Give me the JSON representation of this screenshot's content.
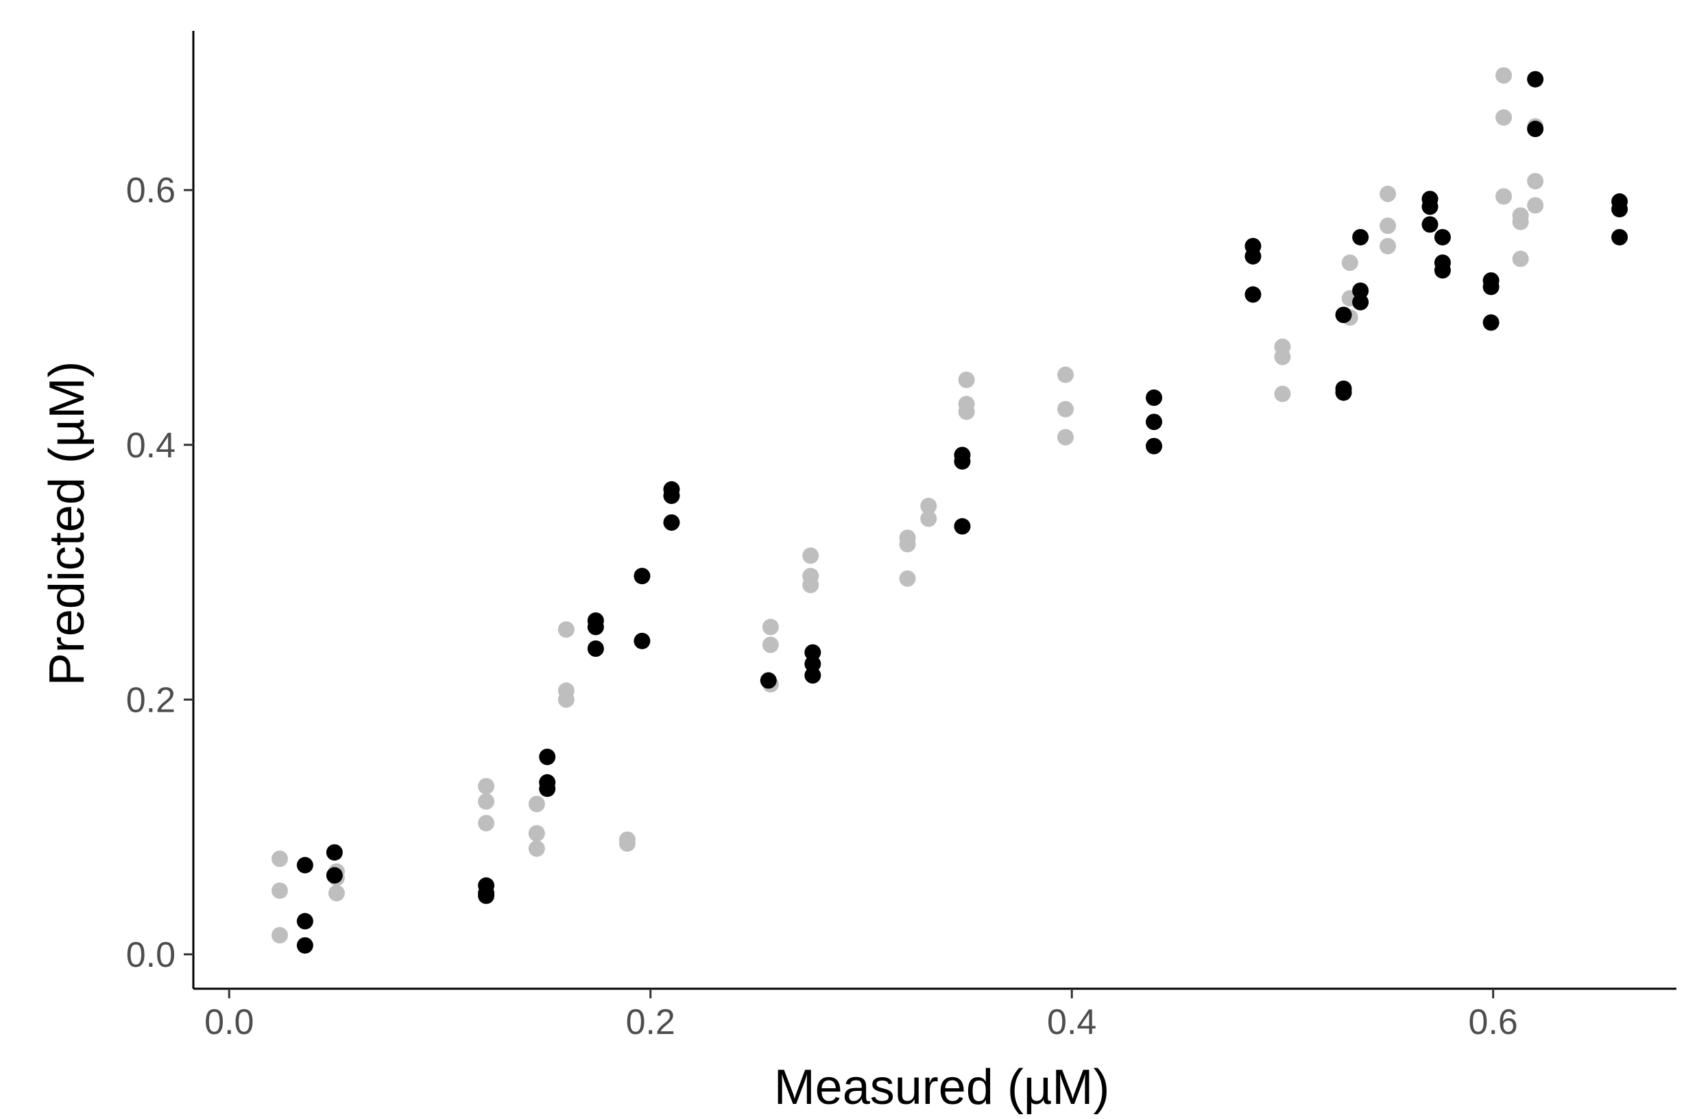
{
  "chart_data": {
    "type": "scatter",
    "title": "",
    "xlabel": "Measured (µM)",
    "ylabel": "Predicted (µM)",
    "xlim": [
      -0.017,
      0.687
    ],
    "ylim": [
      -0.027,
      0.725
    ],
    "xticks": [
      0.0,
      0.2,
      0.4,
      0.6
    ],
    "yticks": [
      0.0,
      0.2,
      0.4,
      0.6
    ],
    "xtick_labels": [
      "0.0",
      "0.2",
      "0.4",
      "0.6"
    ],
    "ytick_labels": [
      "0.0",
      "0.2",
      "0.4",
      "0.6"
    ],
    "grid": false,
    "legend": "none",
    "series": [
      {
        "color": "#bebebe",
        "points": [
          [
            0.024,
            0.075
          ],
          [
            0.024,
            0.05
          ],
          [
            0.024,
            0.015
          ],
          [
            0.051,
            0.065
          ],
          [
            0.051,
            0.06
          ],
          [
            0.051,
            0.048
          ],
          [
            0.122,
            0.132
          ],
          [
            0.122,
            0.12
          ],
          [
            0.122,
            0.103
          ],
          [
            0.146,
            0.118
          ],
          [
            0.146,
            0.095
          ],
          [
            0.146,
            0.083
          ],
          [
            0.16,
            0.255
          ],
          [
            0.16,
            0.207
          ],
          [
            0.16,
            0.2
          ],
          [
            0.189,
            0.09
          ],
          [
            0.189,
            0.087
          ],
          [
            0.257,
            0.257
          ],
          [
            0.257,
            0.243
          ],
          [
            0.257,
            0.212
          ],
          [
            0.276,
            0.313
          ],
          [
            0.276,
            0.297
          ],
          [
            0.276,
            0.29
          ],
          [
            0.322,
            0.327
          ],
          [
            0.322,
            0.322
          ],
          [
            0.322,
            0.295
          ],
          [
            0.332,
            0.352
          ],
          [
            0.332,
            0.342
          ],
          [
            0.35,
            0.451
          ],
          [
            0.35,
            0.432
          ],
          [
            0.35,
            0.426
          ],
          [
            0.397,
            0.455
          ],
          [
            0.397,
            0.428
          ],
          [
            0.397,
            0.406
          ],
          [
            0.5,
            0.477
          ],
          [
            0.5,
            0.469
          ],
          [
            0.5,
            0.44
          ],
          [
            0.532,
            0.543
          ],
          [
            0.532,
            0.515
          ],
          [
            0.532,
            0.5
          ],
          [
            0.55,
            0.597
          ],
          [
            0.55,
            0.572
          ],
          [
            0.55,
            0.556
          ],
          [
            0.605,
            0.69
          ],
          [
            0.605,
            0.657
          ],
          [
            0.605,
            0.595
          ],
          [
            0.613,
            0.58
          ],
          [
            0.613,
            0.575
          ],
          [
            0.613,
            0.546
          ],
          [
            0.62,
            0.65
          ],
          [
            0.62,
            0.607
          ],
          [
            0.62,
            0.588
          ]
        ]
      },
      {
        "color": "#000000",
        "points": [
          [
            0.036,
            0.07
          ],
          [
            0.036,
            0.026
          ],
          [
            0.036,
            0.007
          ],
          [
            0.05,
            0.08
          ],
          [
            0.05,
            0.062
          ],
          [
            0.122,
            0.054
          ],
          [
            0.122,
            0.048
          ],
          [
            0.122,
            0.046
          ],
          [
            0.151,
            0.155
          ],
          [
            0.151,
            0.135
          ],
          [
            0.151,
            0.13
          ],
          [
            0.174,
            0.262
          ],
          [
            0.174,
            0.257
          ],
          [
            0.174,
            0.24
          ],
          [
            0.196,
            0.297
          ],
          [
            0.196,
            0.246
          ],
          [
            0.21,
            0.365
          ],
          [
            0.21,
            0.36
          ],
          [
            0.21,
            0.339
          ],
          [
            0.256,
            0.215
          ],
          [
            0.277,
            0.237
          ],
          [
            0.277,
            0.228
          ],
          [
            0.277,
            0.219
          ],
          [
            0.348,
            0.392
          ],
          [
            0.348,
            0.387
          ],
          [
            0.348,
            0.336
          ],
          [
            0.439,
            0.437
          ],
          [
            0.439,
            0.418
          ],
          [
            0.439,
            0.399
          ],
          [
            0.486,
            0.556
          ],
          [
            0.486,
            0.548
          ],
          [
            0.486,
            0.518
          ],
          [
            0.529,
            0.502
          ],
          [
            0.529,
            0.444
          ],
          [
            0.529,
            0.441
          ],
          [
            0.537,
            0.563
          ],
          [
            0.537,
            0.521
          ],
          [
            0.537,
            0.512
          ],
          [
            0.57,
            0.593
          ],
          [
            0.57,
            0.587
          ],
          [
            0.57,
            0.573
          ],
          [
            0.576,
            0.563
          ],
          [
            0.576,
            0.543
          ],
          [
            0.576,
            0.537
          ],
          [
            0.599,
            0.529
          ],
          [
            0.599,
            0.524
          ],
          [
            0.599,
            0.496
          ],
          [
            0.62,
            0.687
          ],
          [
            0.62,
            0.648
          ],
          [
            0.66,
            0.591
          ],
          [
            0.66,
            0.585
          ],
          [
            0.66,
            0.563
          ]
        ]
      }
    ]
  }
}
